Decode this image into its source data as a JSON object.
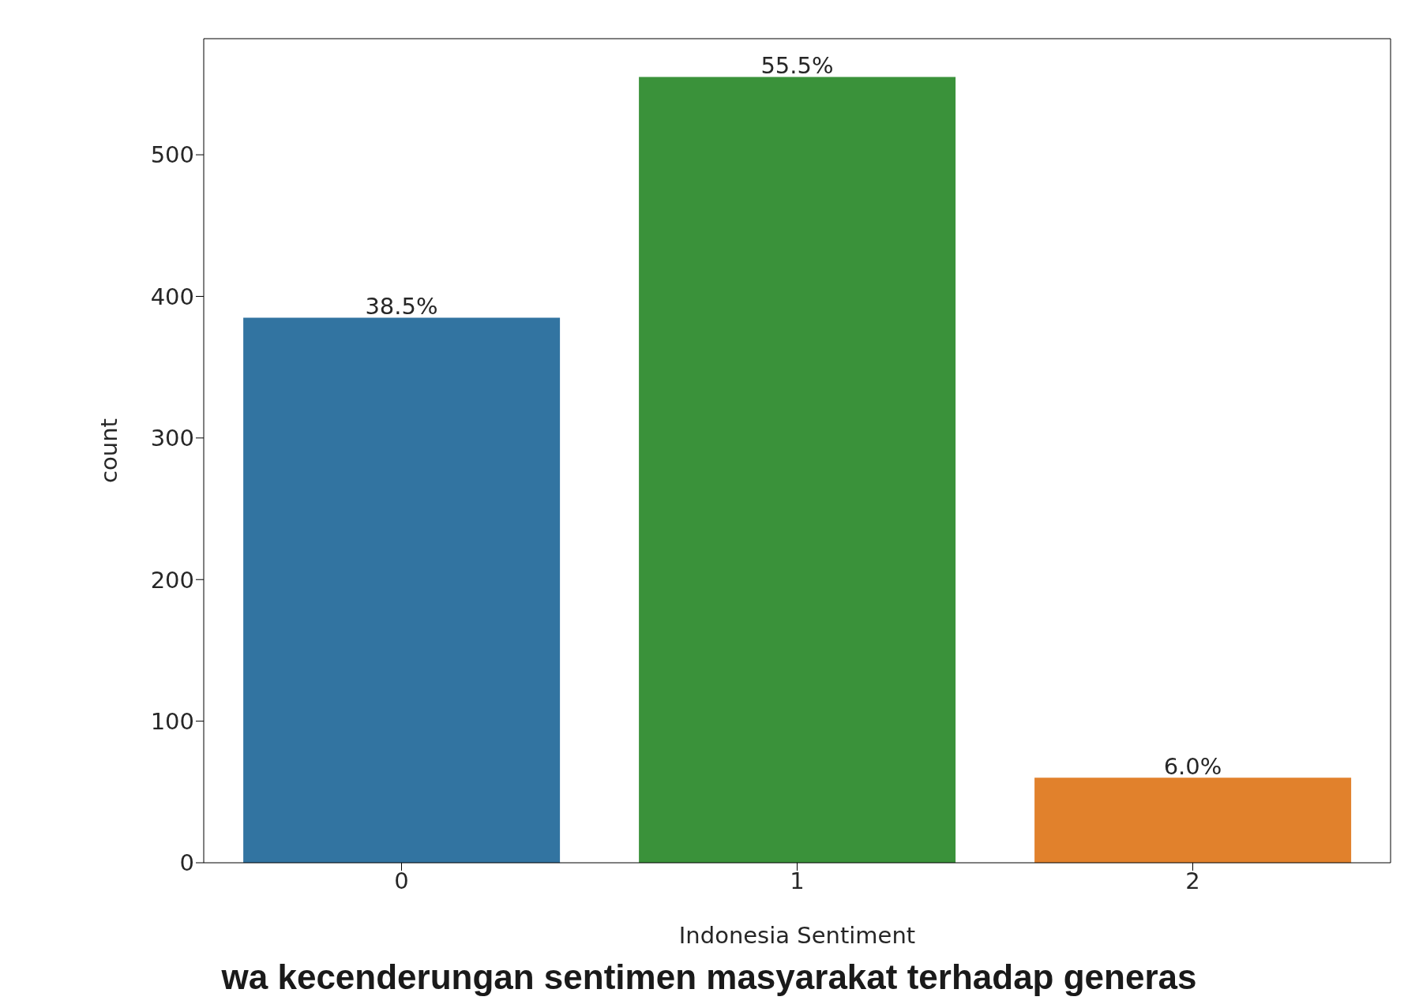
{
  "chart_data": {
    "type": "bar",
    "xlabel": "Indonesia Sentiment",
    "ylabel": "count",
    "categories": [
      "0",
      "1",
      "2"
    ],
    "values": [
      385,
      555,
      60
    ],
    "colors": [
      "#3274a1",
      "#3a923a",
      "#e1812c"
    ],
    "ylim": [
      0,
      582
    ],
    "yticks": [
      0,
      100,
      200,
      300,
      400,
      500
    ],
    "grid": false,
    "annotations": [
      {
        "text": "38.5%",
        "x": "0",
        "y": 385
      },
      {
        "text": "55.5%",
        "x": "1",
        "y": 555
      },
      {
        "text": "6.0%",
        "x": "2",
        "y": 60
      },
      "wa kecenderungan sentimen masyarakat terhadap generas"
    ]
  }
}
